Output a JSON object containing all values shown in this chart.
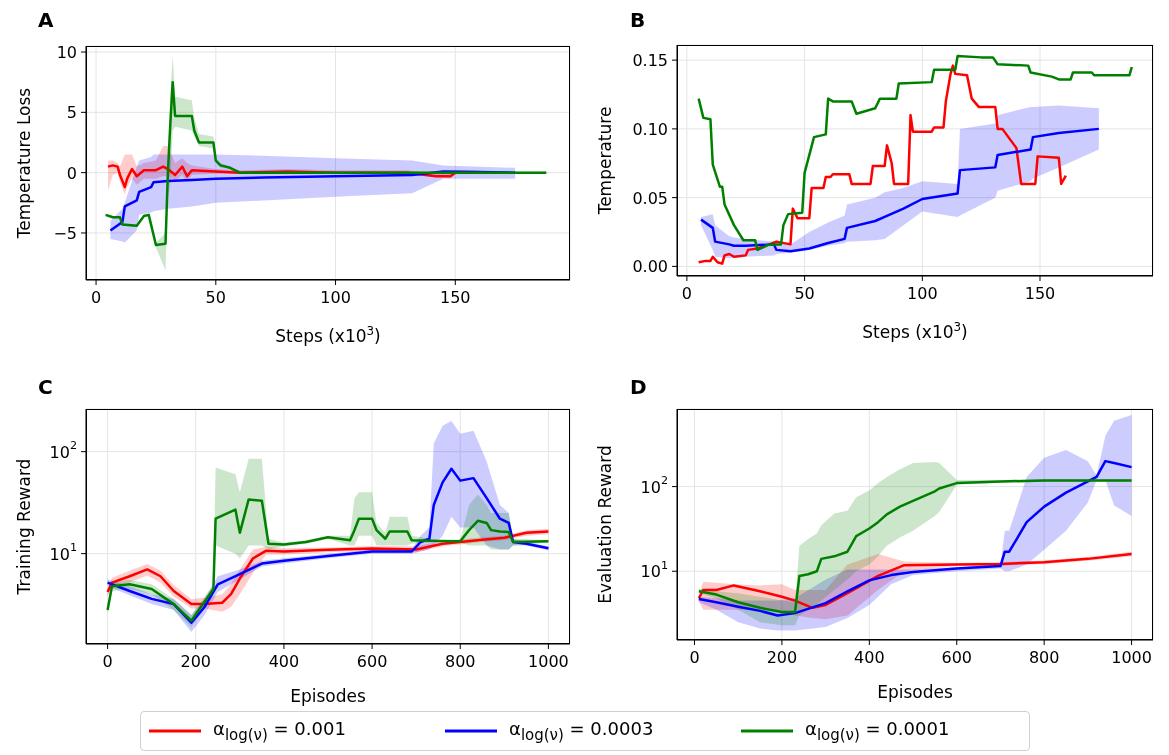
{
  "chart_data": [
    {
      "type": "line",
      "title": "A",
      "xlabel": "Steps (x10$^{3}$)",
      "ylabel": "Temperature Loss",
      "xlim": [
        -4.2,
        197.9
      ],
      "ylim": [
        -8.9,
        10.5
      ],
      "xticks": [
        0,
        50,
        100,
        150
      ],
      "yticks": [
        {
          "value": -5,
          "label": "−5"
        },
        0,
        5,
        10
      ],
      "grid": true,
      "legend": "bottom",
      "series": [
        {
          "name": "α$_{log(ν)}$ = 0.001",
          "color": "#ff0000",
          "x": [
            5,
            7,
            9,
            10,
            12,
            13,
            15,
            17,
            20,
            25,
            28,
            30,
            33,
            36,
            38,
            40,
            50,
            60,
            80,
            100,
            130,
            142,
            148,
            150,
            160
          ],
          "values": [
            0.5,
            0.6,
            0.5,
            -0.2,
            -1.2,
            -0.5,
            0.3,
            -0.3,
            0.2,
            0.2,
            0.5,
            0.3,
            -0.2,
            0.5,
            -0.3,
            0.2,
            0.1,
            0,
            0.1,
            0,
            0,
            -0.3,
            -0.3,
            0,
            0
          ],
          "lower": [
            -1.5,
            -0.2,
            0,
            -0.8,
            -1.8,
            -1.2,
            -0.5,
            -1,
            -0.5,
            -0.5,
            -0.3,
            -0.3,
            -0.7,
            -0.2,
            -0.8,
            -0.2,
            -0.1,
            -0.1,
            -0.1,
            -0.1,
            -0.1,
            -0.4,
            -0.4,
            -0.1,
            -0.1
          ],
          "upper": [
            1,
            1,
            0.8,
            0.5,
            1.5,
            1.5,
            1.5,
            0.5,
            0.8,
            1,
            2.2,
            2.2,
            0.8,
            1.2,
            0.8,
            0.6,
            0.3,
            0.2,
            0.3,
            0.2,
            0.2,
            -0.1,
            -0.1,
            0.2,
            0.2
          ]
        },
        {
          "name": "α$_{log(ν)}$ = 0.0003",
          "color": "#0000ff",
          "x": [
            6,
            11,
            12,
            17,
            18,
            23,
            24,
            30,
            40,
            50,
            70,
            100,
            132,
            145,
            175
          ],
          "values": [
            -4.8,
            -4.1,
            -2.8,
            -2.3,
            -1.6,
            -1.2,
            -0.8,
            -0.7,
            -0.6,
            -0.5,
            -0.4,
            -0.3,
            -0.2,
            0.1,
            0
          ],
          "lower": [
            -5.5,
            -5.7,
            -5.8,
            -4.8,
            -3.5,
            -3.3,
            -3.2,
            -3,
            -2.8,
            -2.5,
            -2.3,
            -2,
            -1.7,
            -0.5,
            -0.5
          ],
          "upper": [
            -4,
            -3,
            -2.5,
            0.5,
            1,
            1.3,
            1.5,
            1.5,
            1.5,
            1.5,
            1.4,
            1.2,
            1,
            0.6,
            0.4
          ]
        },
        {
          "name": "α$_{log(ν)}$ = 0.0001",
          "color": "#008000",
          "x": [
            4,
            7,
            10,
            11,
            17,
            20,
            22,
            25,
            29,
            30,
            31,
            32,
            33,
            40,
            41,
            43,
            49,
            50,
            52,
            56,
            60,
            100,
            150,
            188
          ],
          "values": [
            -3.5,
            -3.7,
            -3.7,
            -4.3,
            -4.4,
            -3.6,
            -3.5,
            -6,
            -5.9,
            0,
            4,
            7.5,
            4.7,
            4.7,
            3.5,
            2.5,
            2.5,
            1,
            0.6,
            0.4,
            0,
            0,
            0,
            0
          ],
          "lower": [
            -3.6,
            -3.8,
            -3.8,
            -4.4,
            -4.5,
            -3.7,
            -3.6,
            -6.2,
            -8.1,
            -2,
            -1,
            3.5,
            3.8,
            3.5,
            3,
            2.2,
            2,
            0.8,
            0.4,
            0.3,
            -0.1,
            -0.1,
            -0.1,
            -0.1
          ],
          "upper": [
            -3.4,
            -3.6,
            -3.6,
            -4.2,
            -4.3,
            -3.5,
            -3.4,
            -5.8,
            -5,
            1,
            6.5,
            9.7,
            6.3,
            6,
            4.5,
            3.2,
            3,
            1.2,
            0.8,
            0.5,
            0.1,
            0.1,
            0.1,
            0.1
          ]
        }
      ]
    },
    {
      "type": "line",
      "title": "B",
      "xlabel": "Steps (x10$^{3}$)",
      "ylabel": "Temperature",
      "xlim": [
        -4.2,
        198
      ],
      "ylim": [
        -0.007,
        0.161
      ],
      "xticks": [
        0,
        50,
        100,
        150
      ],
      "yticks": [
        {
          "value": 0,
          "label": "0.00"
        },
        {
          "value": 0.05,
          "label": "0.05"
        },
        {
          "value": 0.1,
          "label": "0.10"
        },
        {
          "value": 0.15,
          "label": "0.15"
        }
      ],
      "grid": true,
      "series": [
        {
          "color": "#ff0000",
          "x": [
            5,
            8,
            10,
            11,
            13,
            15,
            16,
            18,
            20,
            25,
            26,
            30,
            35,
            38,
            44,
            45,
            47,
            52,
            53,
            58,
            59,
            61,
            62,
            69,
            70,
            78,
            79,
            84,
            85,
            87,
            88,
            94,
            95,
            96,
            104,
            105,
            109,
            110,
            112,
            113,
            114,
            119,
            121,
            124,
            131,
            132,
            134,
            140,
            142,
            148,
            149,
            158,
            159,
            161
          ],
          "values": [
            0.003,
            0.004,
            0.004,
            0.007,
            0.003,
            0.002,
            0.008,
            0.009,
            0.007,
            0.008,
            0.012,
            0.013,
            0.016,
            0.018,
            0.016,
            0.042,
            0.035,
            0.035,
            0.057,
            0.057,
            0.065,
            0.065,
            0.067,
            0.067,
            0.06,
            0.06,
            0.073,
            0.073,
            0.088,
            0.075,
            0.06,
            0.06,
            0.11,
            0.098,
            0.098,
            0.101,
            0.101,
            0.12,
            0.14,
            0.146,
            0.14,
            0.139,
            0.122,
            0.116,
            0.116,
            0.1,
            0.1,
            0.086,
            0.06,
            0.06,
            0.08,
            0.079,
            0.06,
            0.066
          ]
        },
        {
          "color": "#0000ff",
          "x": [
            6,
            11,
            12,
            18,
            20,
            25,
            37,
            38,
            44,
            52,
            60,
            67,
            68,
            80,
            84,
            92,
            100,
            115,
            116,
            131,
            132,
            146,
            147,
            158,
            175
          ],
          "values": [
            0.034,
            0.028,
            0.018,
            0.016,
            0.015,
            0.015,
            0.016,
            0.012,
            0.011,
            0.013,
            0.017,
            0.02,
            0.028,
            0.033,
            0.036,
            0.042,
            0.049,
            0.053,
            0.07,
            0.072,
            0.081,
            0.085,
            0.094,
            0.097,
            0.1
          ],
          "lower": [
            0.03,
            0.012,
            0.007,
            0.006,
            0.006,
            0.007,
            0.008,
            0.009,
            0.01,
            0.012,
            0.015,
            0.017,
            0.018,
            0.019,
            0.02,
            0.03,
            0.04,
            0.036,
            0.037,
            0.05,
            0.055,
            0.062,
            0.064,
            0.072,
            0.085
          ],
          "upper": [
            0.036,
            0.038,
            0.03,
            0.022,
            0.021,
            0.02,
            0.018,
            0.017,
            0.016,
            0.025,
            0.032,
            0.037,
            0.045,
            0.05,
            0.054,
            0.057,
            0.062,
            0.06,
            0.1,
            0.104,
            0.11,
            0.116,
            0.116,
            0.117,
            0.115
          ]
        },
        {
          "color": "#008000",
          "x": [
            5,
            7,
            10,
            11,
            14,
            15,
            16,
            20,
            24,
            29,
            30,
            35,
            40,
            41,
            43,
            49,
            50,
            54,
            59,
            60,
            62,
            70,
            72,
            80,
            82,
            89,
            90,
            104,
            105,
            114,
            115,
            125,
            130,
            132,
            145,
            146,
            155,
            158,
            163,
            164,
            172,
            173,
            188,
            189
          ],
          "values": [
            0.122,
            0.108,
            0.107,
            0.074,
            0.058,
            0.058,
            0.045,
            0.03,
            0.019,
            0.019,
            0.012,
            0.016,
            0.016,
            0.03,
            0.038,
            0.039,
            0.068,
            0.094,
            0.096,
            0.122,
            0.12,
            0.12,
            0.111,
            0.115,
            0.122,
            0.122,
            0.133,
            0.134,
            0.143,
            0.143,
            0.153,
            0.152,
            0.152,
            0.147,
            0.146,
            0.141,
            0.138,
            0.136,
            0.136,
            0.141,
            0.141,
            0.139,
            0.139,
            0.145
          ]
        }
      ]
    },
    {
      "type": "line",
      "title": "C",
      "xlabel": "Episodes",
      "ylabel": "Training Reward",
      "log": "y",
      "xlim": [
        -49,
        1049
      ],
      "ylim": [
        1.3,
        262
      ],
      "xticks": [
        0,
        200,
        400,
        600,
        800,
        1000
      ],
      "yticks": [
        {
          "value": 10,
          "label": "10$^{1}$"
        },
        {
          "value": 100,
          "label": "10$^{2}$"
        }
      ],
      "grid": true,
      "series": [
        {
          "color": "#ff0000",
          "x": [
            0,
            10,
            50,
            90,
            120,
            150,
            190,
            220,
            260,
            280,
            300,
            330,
            360,
            400,
            500,
            600,
            700,
            760,
            800,
            850,
            900,
            950,
            1000
          ],
          "values": [
            4.2,
            5.2,
            6,
            7,
            6,
            4.3,
            3.2,
            3.2,
            3.3,
            4,
            5.7,
            9,
            10.7,
            10.5,
            10.9,
            11.2,
            11,
            12.5,
            13,
            13.7,
            14.3,
            16,
            16.5
          ],
          "lower": [
            3.8,
            4.6,
            5.2,
            6.1,
            5.2,
            3.8,
            2.9,
            2.9,
            2.7,
            3,
            4,
            6.5,
            9.8,
            9.8,
            10.3,
            10.6,
            10.3,
            11.8,
            12.3,
            13,
            13.6,
            15,
            15.5
          ],
          "upper": [
            4.6,
            5.8,
            6.8,
            7.9,
            6.8,
            4.9,
            3.6,
            3.7,
            4,
            5,
            7,
            11,
            11.7,
            11.3,
            11.5,
            11.8,
            11.8,
            13.3,
            13.8,
            14.5,
            15,
            17,
            17.5
          ]
        },
        {
          "color": "#0000ff",
          "x": [
            0,
            50,
            100,
            150,
            190,
            220,
            250,
            300,
            350,
            400,
            500,
            600,
            690,
            710,
            730,
            740,
            760,
            780,
            800,
            830,
            860,
            890,
            910,
            920,
            950,
            1000
          ],
          "values": [
            5.2,
            4.3,
            3.6,
            3.2,
            2.1,
            3,
            5,
            6.3,
            8,
            8.5,
            9.5,
            10.5,
            10.5,
            13,
            14,
            30,
            50,
            68,
            52,
            55,
            35,
            22,
            20,
            13,
            12.5,
            11.3
          ],
          "lower": [
            4.8,
            3.9,
            3.2,
            2.8,
            1.7,
            2.5,
            4.2,
            5.6,
            7.5,
            8,
            9,
            10,
            10,
            10.5,
            11,
            12,
            15,
            23,
            18,
            18,
            12,
            11,
            11,
            12,
            12,
            10.8
          ],
          "upper": [
            5.6,
            4.8,
            4,
            3.6,
            2.5,
            3.6,
            6,
            7,
            8.5,
            9,
            10,
            11,
            11,
            15,
            18,
            120,
            180,
            200,
            150,
            160,
            80,
            30,
            25,
            14,
            13,
            11.8
          ]
        },
        {
          "color": "#008000",
          "x": [
            0,
            10,
            50,
            100,
            150,
            190,
            240,
            245,
            290,
            300,
            320,
            350,
            365,
            400,
            450,
            500,
            550,
            560,
            570,
            600,
            610,
            630,
            640,
            680,
            690,
            750,
            800,
            820,
            840,
            860,
            870,
            890,
            910,
            920,
            1000
          ],
          "values": [
            2.8,
            4.8,
            5,
            4.5,
            3.2,
            2.2,
            4.5,
            22,
            27,
            16,
            34,
            33,
            12.5,
            12.3,
            13,
            14.5,
            13.5,
            17,
            22,
            22,
            17,
            14,
            16.5,
            16.5,
            13.5,
            13.3,
            13.2,
            17,
            21,
            20,
            17,
            16.5,
            16.3,
            13,
            13.2
          ],
          "lower": [
            2.6,
            4.3,
            4.5,
            4,
            2.8,
            1.9,
            4,
            12,
            10,
            9,
            12,
            12,
            11,
            11.8,
            12.5,
            14,
            12,
            12,
            15,
            15,
            12,
            12,
            12,
            12,
            12.5,
            13,
            12.8,
            12,
            12,
            12,
            11,
            11,
            11,
            12,
            12.8
          ],
          "upper": [
            3,
            5.3,
            5.5,
            5,
            3.6,
            2.5,
            5,
            70,
            60,
            40,
            85,
            85,
            14,
            12.8,
            13.5,
            15,
            15,
            35,
            40,
            40,
            20,
            16,
            23,
            23,
            15,
            13.6,
            13.6,
            30,
            38,
            30,
            25,
            25,
            25,
            14,
            13.6
          ]
        }
      ]
    },
    {
      "type": "line",
      "title": "D",
      "xlabel": "Episodes",
      "ylabel": "Evaluation Reward",
      "log": "y",
      "xlim": [
        -40,
        1049
      ],
      "ylim": [
        1.54,
        826
      ],
      "xticks": [
        0,
        200,
        400,
        600,
        800,
        1000
      ],
      "yticks": [
        {
          "value": 10,
          "label": "10$^{1}$"
        },
        {
          "value": 100,
          "label": "10$^{2}$"
        }
      ],
      "grid": true,
      "series": [
        {
          "color": "#ff0000",
          "x": [
            10,
            20,
            50,
            90,
            150,
            200,
            230,
            270,
            300,
            350,
            420,
            480,
            600,
            700,
            800,
            900,
            1000
          ],
          "values": [
            4.8,
            6,
            6,
            6.8,
            5.8,
            5,
            4.5,
            3.7,
            4,
            5.5,
            8.8,
            11.8,
            12,
            12.2,
            12.8,
            14,
            16
          ],
          "lower": [
            4.5,
            3.5,
            3.5,
            3.5,
            3.5,
            3.3,
            3,
            2.8,
            2.7,
            3,
            6,
            10,
            11.5,
            11.6,
            12.2,
            13.3,
            15
          ],
          "upper": [
            5.1,
            7.5,
            7.3,
            7,
            6.8,
            7,
            6,
            6,
            6,
            12,
            16,
            13,
            12.5,
            12.8,
            13.4,
            14.7,
            17
          ]
        },
        {
          "color": "#0000ff",
          "x": [
            10,
            50,
            100,
            150,
            190,
            230,
            300,
            350,
            400,
            450,
            500,
            600,
            700,
            710,
            720,
            760,
            800,
            850,
            900,
            920,
            940,
            960,
            1000
          ],
          "values": [
            4.7,
            4.3,
            3.8,
            3.4,
            3,
            3.2,
            4.2,
            5.8,
            7.8,
            9,
            9.8,
            10.8,
            11.5,
            17,
            17,
            38,
            58,
            85,
            115,
            130,
            200,
            190,
            170
          ],
          "lower": [
            4.3,
            3.5,
            2.5,
            2.1,
            2,
            2,
            2.2,
            2.8,
            4,
            7,
            9,
            10,
            10.8,
            10,
            10,
            12,
            18,
            30,
            65,
            120,
            120,
            60,
            45
          ],
          "upper": [
            5,
            4.8,
            4.5,
            4.5,
            4.5,
            4.8,
            8,
            10.5,
            10.5,
            10.5,
            10.5,
            11.2,
            12,
            30,
            30,
            130,
            220,
            270,
            200,
            135,
            400,
            600,
            700
          ]
        },
        {
          "color": "#008000",
          "x": [
            10,
            50,
            100,
            150,
            200,
            230,
            240,
            260,
            280,
            290,
            320,
            350,
            370,
            400,
            420,
            440,
            470,
            500,
            550,
            560,
            600,
            700,
            800,
            1000
          ],
          "values": [
            5.8,
            5.3,
            4.3,
            3.7,
            3.3,
            3.3,
            8.8,
            9.2,
            10,
            14,
            15,
            17,
            26,
            32,
            38,
            47,
            58,
            68,
            88,
            95,
            110,
            115,
            118,
            118
          ],
          "lower": [
            5.5,
            4.8,
            3.5,
            2.5,
            2.3,
            2.3,
            3,
            3.5,
            4,
            4.5,
            6,
            8,
            10,
            12,
            15,
            20,
            25,
            30,
            45,
            50,
            105,
            111,
            114,
            114
          ],
          "upper": [
            6.2,
            5.8,
            5.5,
            5,
            4.5,
            4.3,
            20,
            24,
            28,
            35,
            48,
            52,
            75,
            90,
            110,
            130,
            160,
            190,
            195,
            190,
            120,
            120,
            122,
            122
          ]
        }
      ]
    }
  ]
}
